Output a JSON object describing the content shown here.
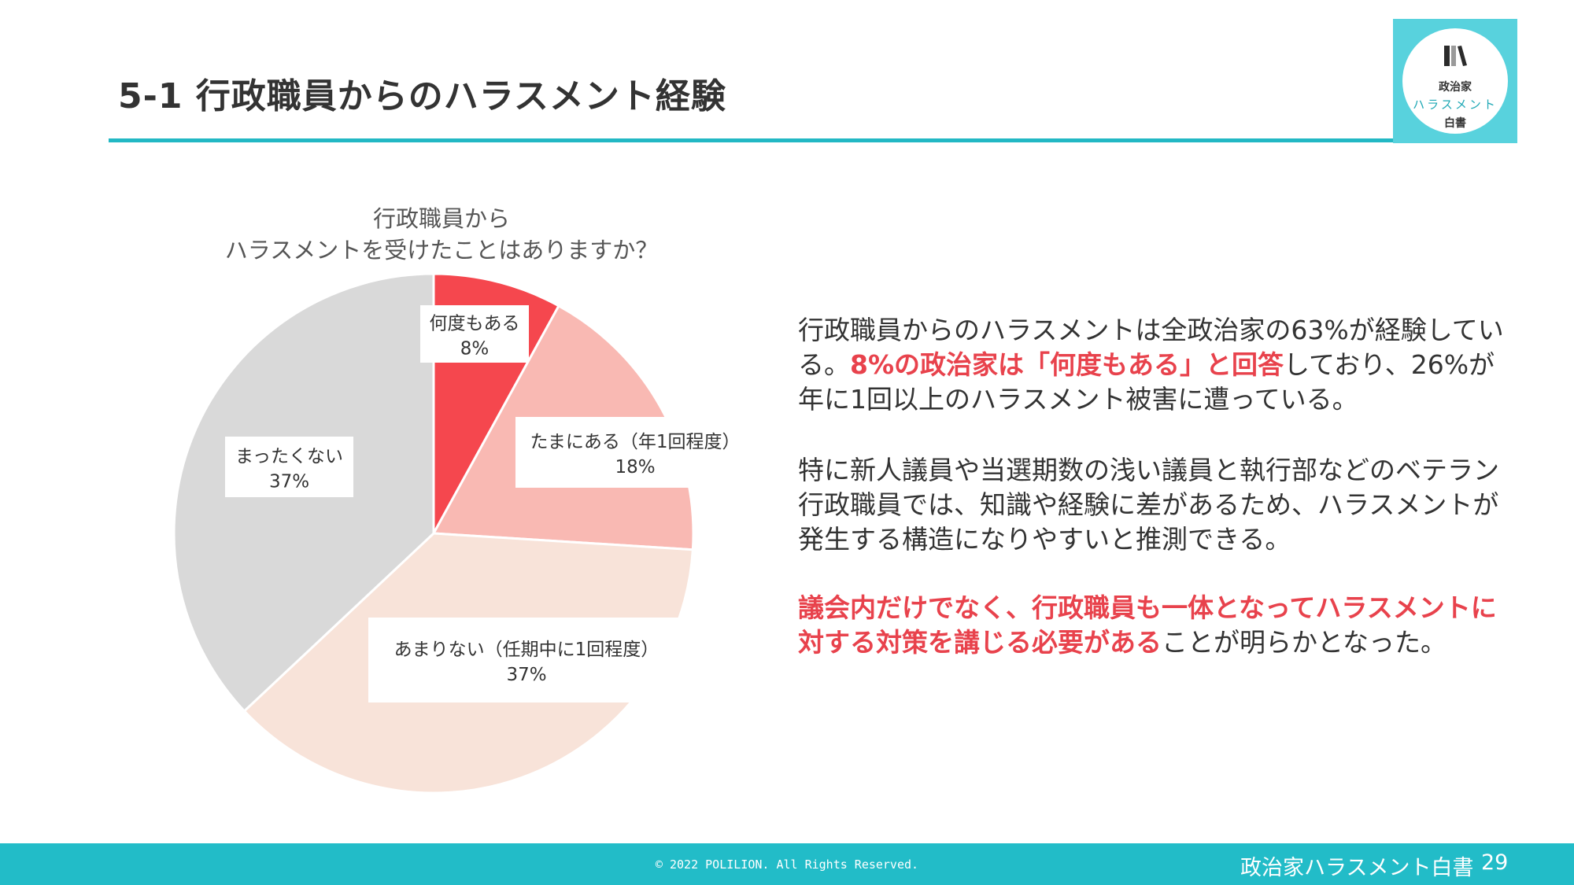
{
  "header": {
    "title": "5-1 行政職員からのハラスメント経験"
  },
  "logo": {
    "line1": "政治家",
    "line2": "ハラスメント",
    "line3": "白書"
  },
  "chart_data": {
    "type": "pie",
    "title_lines": [
      "行政職員から",
      "ハラスメントを受けたことはありますか？"
    ],
    "start_angle_deg": 0,
    "direction": "clockwise",
    "slices": [
      {
        "label": "何度もある",
        "value": 8,
        "value_label": "8%",
        "color": "#f5474e"
      },
      {
        "label": "たまにある（年1回程度）",
        "value": 18,
        "value_label": "18%",
        "color": "#f9b9b3"
      },
      {
        "label": "あまりない（任期中に1回程度）",
        "value": 37,
        "value_label": "37%",
        "color": "#f8e3d9"
      },
      {
        "label": "まったくない",
        "value": 37,
        "value_label": "37%",
        "color": "#d9d9d9"
      }
    ]
  },
  "body": {
    "p1": [
      {
        "text": "行政職員からのハラスメントは全政治家の63%が経験している。",
        "hl": false
      },
      {
        "text": "8%の政治家は「何度もある」と回答",
        "hl": true
      },
      {
        "text": "しており、26%が年に1回以上のハラスメント被害に遭っている。",
        "hl": false
      }
    ],
    "p2": [
      {
        "text": "特に新人議員や当選期数の浅い議員と執行部などのベテラン行政職員では、知識や経験に差があるため、ハラスメントが発生する構造になりやすいと推測できる。",
        "hl": false
      }
    ],
    "p3": [
      {
        "text": "議会内だけでなく、行政職員も一体となってハラスメントに対する対策を講じる必要がある",
        "hl": true
      },
      {
        "text": "ことが明らかとなった。",
        "hl": false
      }
    ]
  },
  "footer": {
    "copyright": "© 2022 POLILION. All Rights Reserved.",
    "title": "政治家ハラスメント白書",
    "page": "29"
  }
}
